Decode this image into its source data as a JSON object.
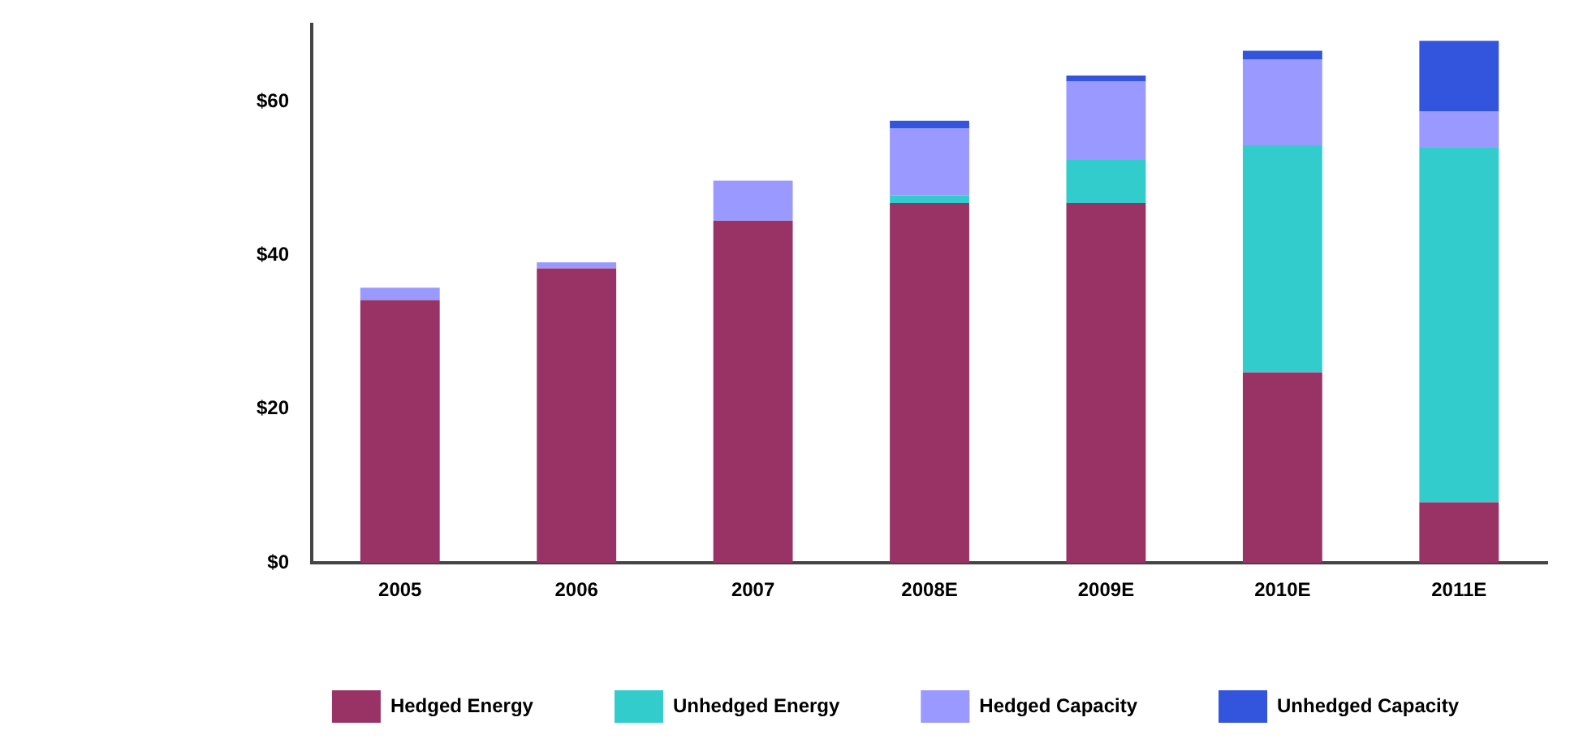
{
  "chart_data": {
    "type": "bar",
    "stacked": true,
    "categories": [
      "2005",
      "2006",
      "2007",
      "2008E",
      "2009E",
      "2010E",
      "2011E"
    ],
    "series": [
      {
        "name": "Hedged Energy",
        "color": "#993366",
        "values": [
          34.2,
          38.3,
          44.5,
          46.8,
          46.8,
          24.8,
          7.9
        ]
      },
      {
        "name": "Unhedged Energy",
        "color": "#33cccc",
        "values": [
          null,
          null,
          null,
          1.0,
          5.6,
          29.5,
          46.1
        ]
      },
      {
        "name": "Hedged Capacity",
        "color": "#9999ff",
        "values": [
          1.6,
          0.8,
          5.2,
          8.7,
          10.2,
          11.2,
          4.7
        ]
      },
      {
        "name": "Unhedged Capacity",
        "color": "#3355dd",
        "values": [
          null,
          null,
          null,
          1.0,
          0.8,
          1.1,
          9.2
        ]
      }
    ],
    "ylim": [
      0,
      70
    ],
    "yticks": [
      {
        "value": 0,
        "label": "$0"
      },
      {
        "value": 20,
        "label": "$20"
      },
      {
        "value": 40,
        "label": "$40"
      },
      {
        "value": 60,
        "label": "$60"
      }
    ],
    "grid": false,
    "legend": "bottom"
  }
}
